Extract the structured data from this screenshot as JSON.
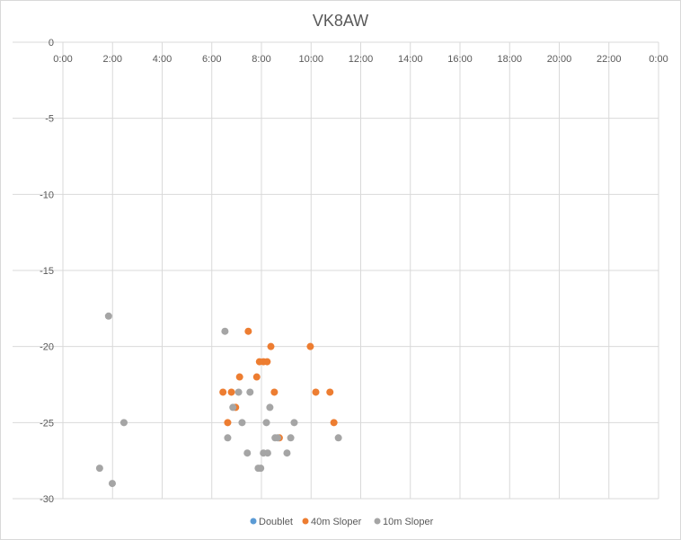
{
  "chart_data": {
    "type": "scatter",
    "title": "VK8AW",
    "xlabel": "",
    "ylabel": "",
    "xlim": [
      0,
      24
    ],
    "ylim": [
      -30,
      0
    ],
    "x_unit": "hours (time of day)",
    "x_ticks": [
      "0:00",
      "2:00",
      "4:00",
      "6:00",
      "8:00",
      "10:00",
      "12:00",
      "14:00",
      "16:00",
      "18:00",
      "20:00",
      "22:00",
      "0:00"
    ],
    "y_ticks": [
      "0",
      "-5",
      "-10",
      "-15",
      "-20",
      "-25",
      "-30"
    ],
    "grid": true,
    "legend_position": "bottom",
    "series": [
      {
        "name": "Doublet",
        "color": "#5b9bd5",
        "points": []
      },
      {
        "name": "40m Sloper",
        "color": "#ed7d31",
        "points": [
          [
            7.47,
            -19
          ],
          [
            8.38,
            -20
          ],
          [
            9.97,
            -20
          ],
          [
            7.92,
            -21
          ],
          [
            8.08,
            -21
          ],
          [
            8.23,
            -21
          ],
          [
            7.12,
            -22
          ],
          [
            7.81,
            -22
          ],
          [
            6.45,
            -23
          ],
          [
            6.79,
            -23
          ],
          [
            8.52,
            -23
          ],
          [
            10.19,
            -23
          ],
          [
            10.76,
            -23
          ],
          [
            6.96,
            -24
          ],
          [
            6.64,
            -25
          ],
          [
            10.92,
            -25
          ],
          [
            8.72,
            -26
          ]
        ]
      },
      {
        "name": "10m Sloper",
        "color": "#a5a5a5",
        "points": [
          [
            1.84,
            -18
          ],
          [
            2.46,
            -25
          ],
          [
            1.48,
            -28
          ],
          [
            1.99,
            -29
          ],
          [
            6.53,
            -19
          ],
          [
            7.08,
            -23
          ],
          [
            7.54,
            -23
          ],
          [
            6.85,
            -24
          ],
          [
            8.34,
            -24
          ],
          [
            7.22,
            -25
          ],
          [
            8.2,
            -25
          ],
          [
            9.32,
            -25
          ],
          [
            6.64,
            -26
          ],
          [
            8.55,
            -26
          ],
          [
            8.65,
            -26
          ],
          [
            9.18,
            -26
          ],
          [
            11.1,
            -26
          ],
          [
            7.43,
            -27
          ],
          [
            8.08,
            -27
          ],
          [
            8.25,
            -27
          ],
          [
            9.03,
            -27
          ],
          [
            7.87,
            -28
          ],
          [
            7.97,
            -28
          ]
        ]
      }
    ]
  }
}
